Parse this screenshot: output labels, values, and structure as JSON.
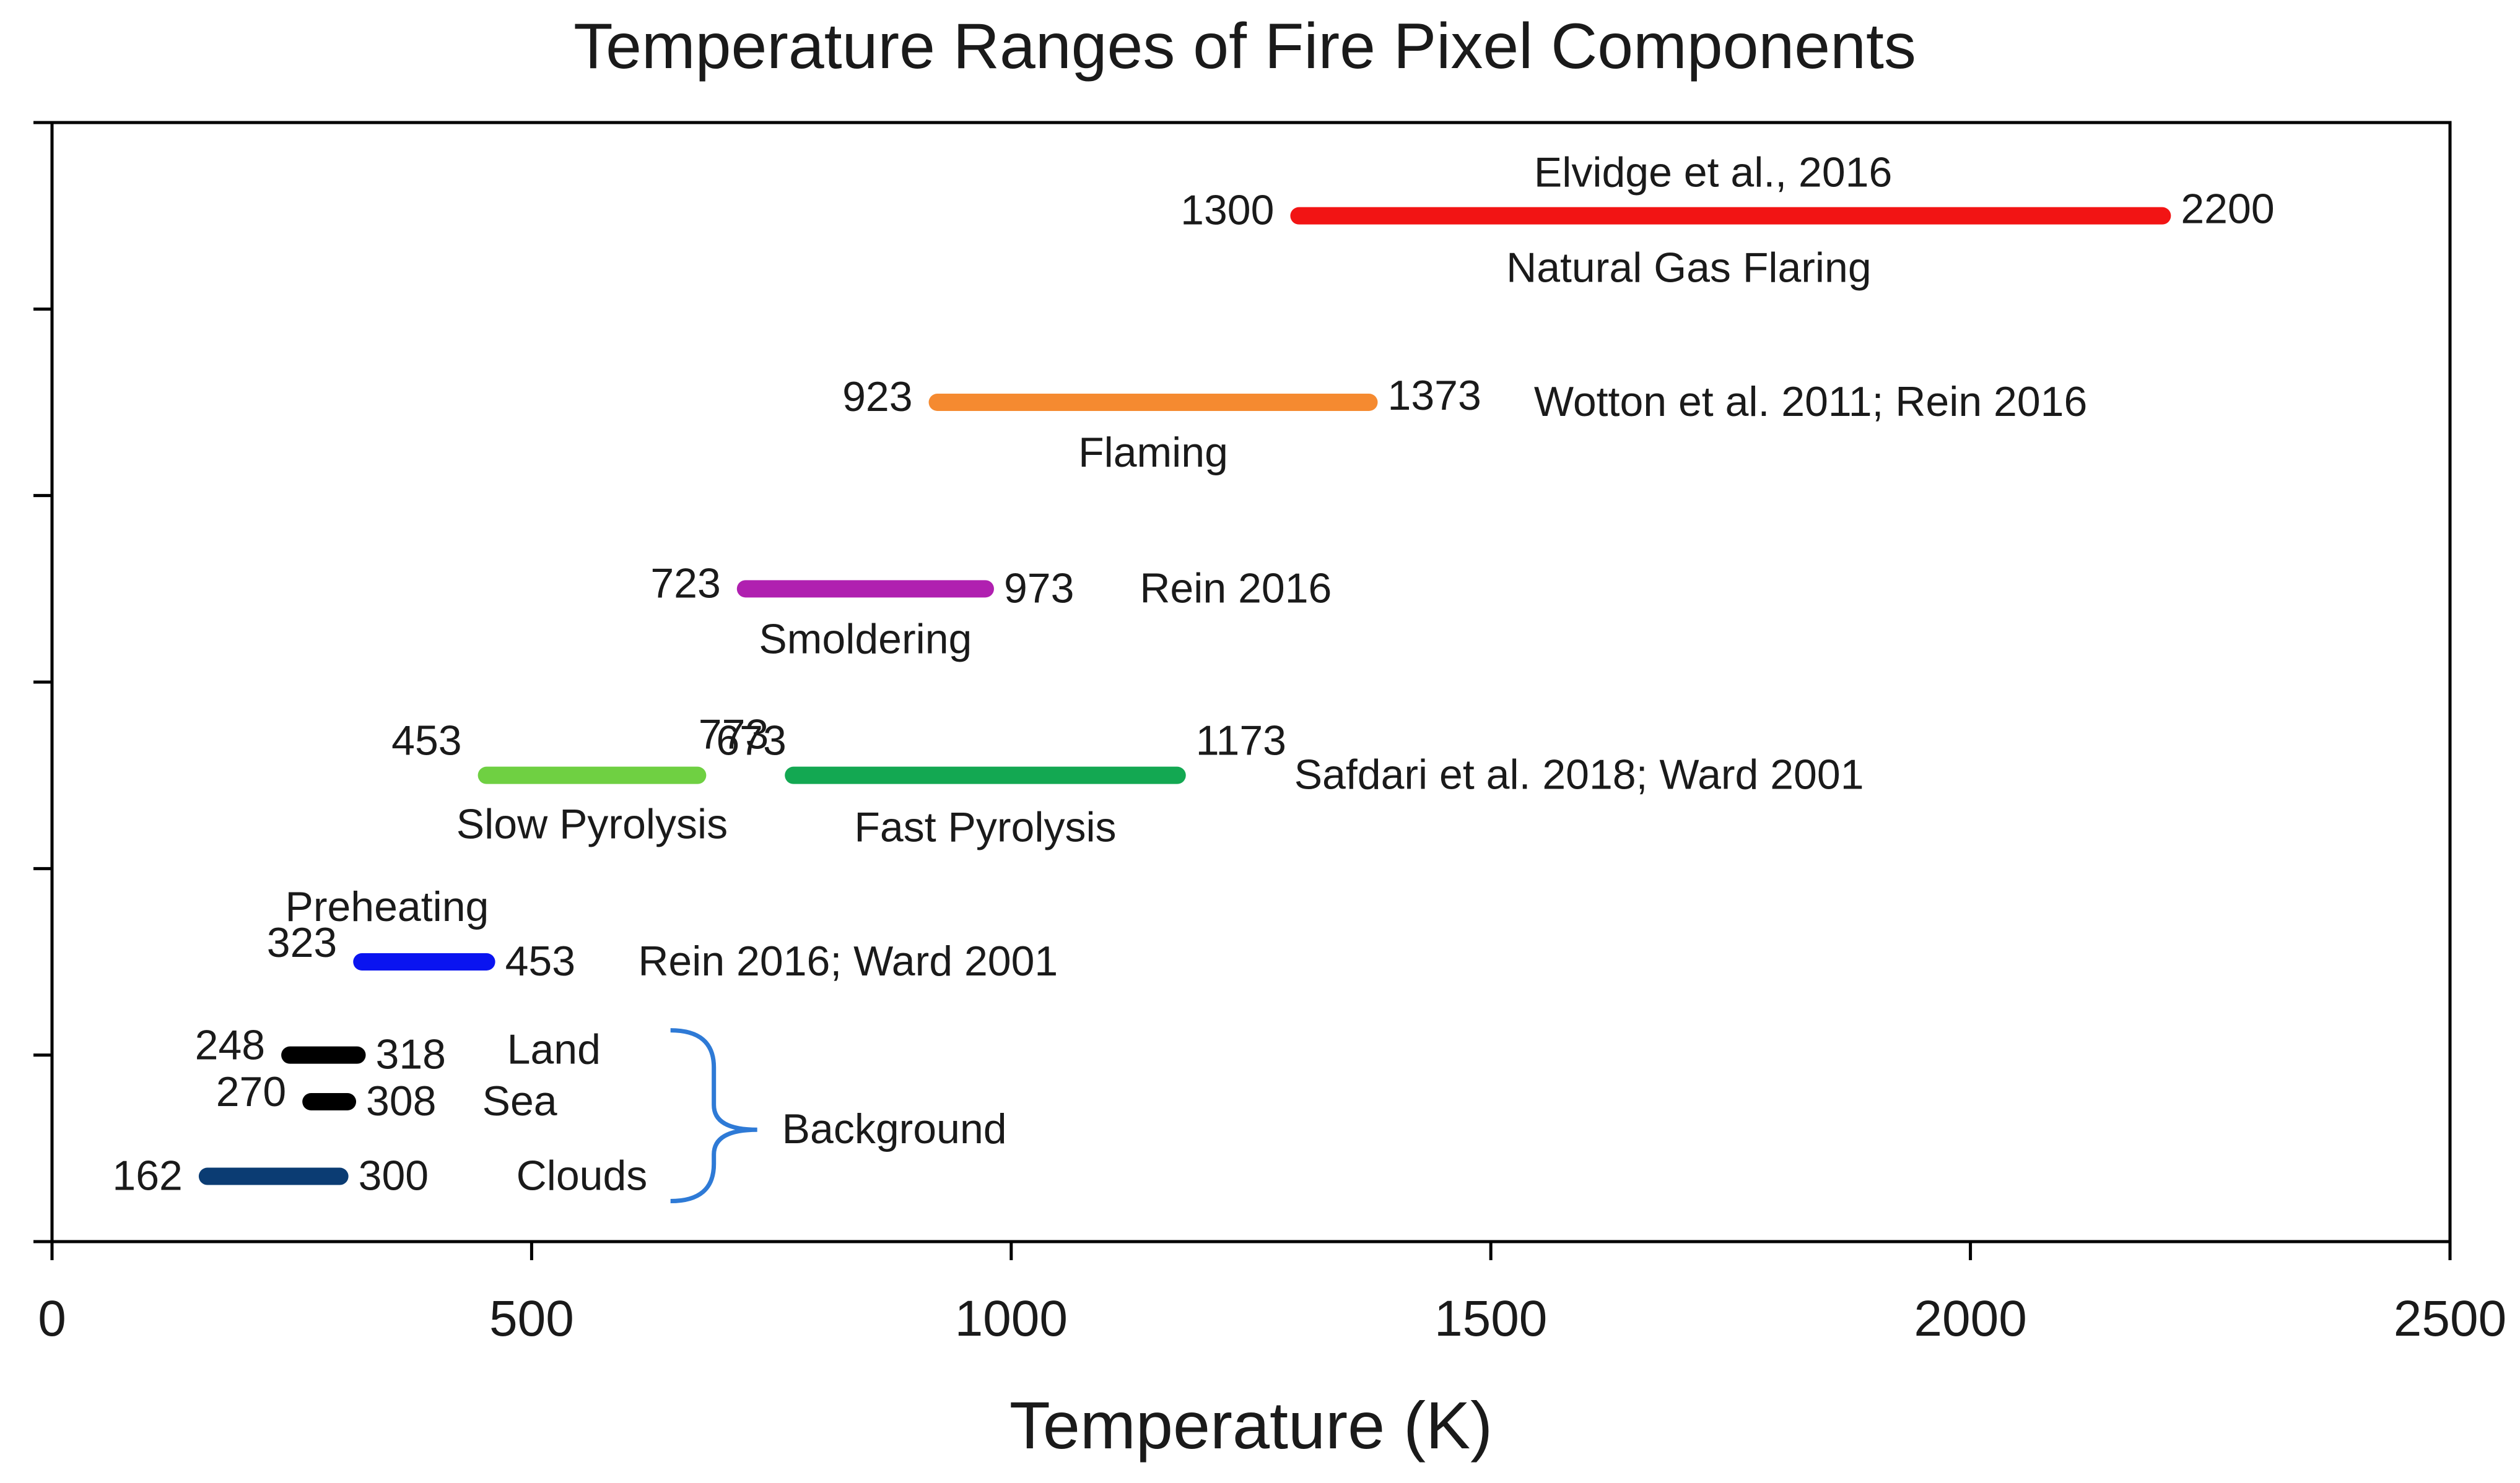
{
  "chart_data": {
    "type": "range-bar",
    "title": "Temperature Ranges of Fire Pixel Components",
    "xlabel": "Temperature (K)",
    "ylabel": "",
    "xlim": [
      0,
      2500
    ],
    "xticks": [
      0,
      500,
      1000,
      1500,
      2000,
      2500
    ],
    "xtick_labels": [
      "0",
      "500",
      "1000",
      "1500",
      "2000",
      "2500"
    ],
    "grid": false,
    "legend": "none",
    "ranges": [
      {
        "name": "Clouds",
        "min": 162,
        "max": 300,
        "min_label": "162",
        "max_label": "300",
        "color": "#0b3c73",
        "row": 0.35
      },
      {
        "name": "Sea",
        "min": 270,
        "max": 308,
        "min_label": "270",
        "max_label": "308",
        "color": "#000000",
        "row": 0.75
      },
      {
        "name": "Land",
        "min": 248,
        "max": 318,
        "min_label": "248",
        "max_label": "318",
        "color": "#000000",
        "row": 1.0
      },
      {
        "name": "Preheating",
        "min": 323,
        "max": 453,
        "min_label": "323",
        "max_label": "453",
        "color": "#0a14f0",
        "row": 1.5
      },
      {
        "name": "Slow Pyrolysis",
        "min": 453,
        "max": 673,
        "min_label": "453",
        "max_label": "673",
        "color": "#6fd042",
        "row": 2.5
      },
      {
        "name": "Fast Pyrolysis",
        "min": 773,
        "max": 1173,
        "min_label": "773",
        "max_label": "1173",
        "color": "#13a852",
        "row": 2.5
      },
      {
        "name": "Smoldering",
        "min": 723,
        "max": 973,
        "min_label": "723",
        "max_label": "973",
        "color": "#b020b0",
        "row": 3.5
      },
      {
        "name": "Flaming",
        "min": 923,
        "max": 1373,
        "min_label": "923",
        "max_label": "1373",
        "color": "#f58a30",
        "row": 4.5
      },
      {
        "name": "Natural Gas Flaring",
        "min": 1300,
        "max": 2200,
        "min_label": "1300",
        "max_label": "2200",
        "color": "#f21414",
        "row": 5.5
      }
    ],
    "sources": [
      {
        "text": "Rein 2016; Ward 2001",
        "at_x": 611,
        "row": 1.5
      },
      {
        "text": "Safdari et al. 2018; Ward 2001",
        "at_x": 1295,
        "row": 2.5
      },
      {
        "text": "Rein 2016",
        "at_x": 1134,
        "row": 3.5
      },
      {
        "text": "Wotton et al. 2011; Rein 2016",
        "at_x": 1545,
        "row": 4.5
      },
      {
        "text": "Elvidge et al., 2016",
        "at_x": 1545,
        "row": 5.73
      }
    ],
    "bracket": {
      "label": "Background",
      "groups": [
        "Land",
        "Sea",
        "Clouds"
      ],
      "color": "#2e7ad6"
    }
  }
}
